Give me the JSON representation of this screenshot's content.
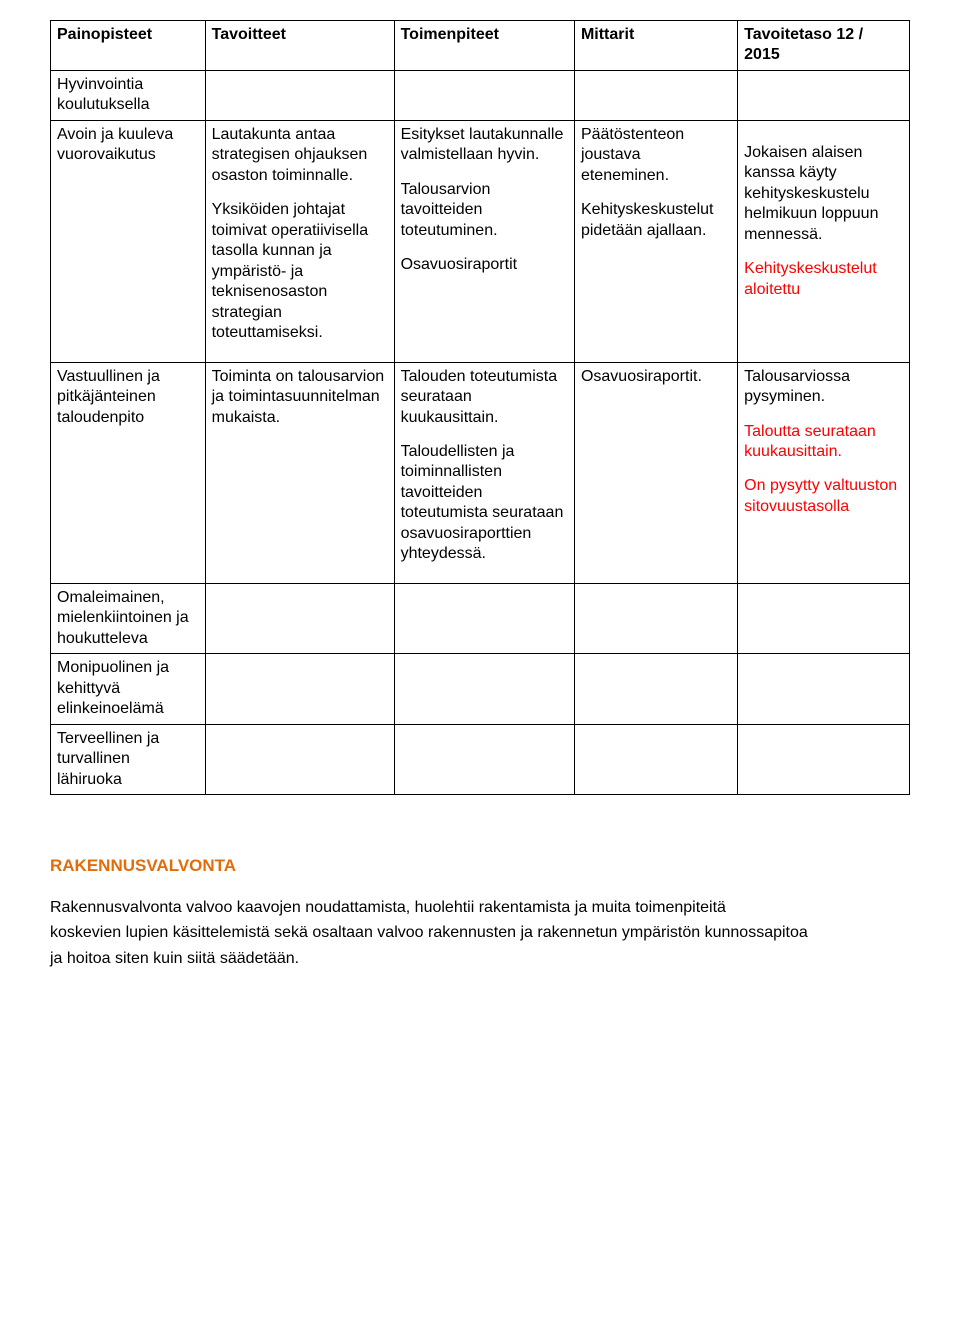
{
  "table": {
    "headers": [
      "Painopisteet",
      "Tavoitteet",
      "Toimenpiteet",
      "Mittarit",
      "Tavoitetaso 12 / 2015"
    ],
    "rows": [
      {
        "c0": "Hyvinvointia koulutuksella"
      },
      {
        "c0": "Avoin ja kuuleva vuorovaikutus",
        "c1a": "Lautakunta antaa strategisen ohjauksen osaston toiminnalle.",
        "c1b": "Yksiköiden johtajat toimivat operatiivisella tasolla kunnan ja ympäristö- ja teknisenosaston strategian toteuttamiseksi.",
        "c2a": "Esitykset lautakunnalle valmistellaan hyvin.",
        "c2b": "Talousarvion tavoitteiden toteutuminen.",
        "c2c": "Osavuosiraportit",
        "c3a": "Päätöstenteon joustava eteneminen.",
        "c3b": "Kehityskeskustelut pidetään ajallaan.",
        "c4a": "Jokaisen alaisen kanssa käyty kehityskeskustelu helmikuun loppuun mennessä.",
        "c4b": "Kehityskeskustelut aloitettu"
      },
      {
        "c0": "Vastuullinen ja pitkäjänteinen taloudenpito",
        "c1a": "Toiminta on talousarvion ja toimintasuunnitelman mukaista.",
        "c2a": "Talouden toteutumista seurataan kuukausittain.",
        "c2b": "Taloudellisten ja toiminnallisten tavoitteiden toteutumista seurataan osavuosiraporttien  yhteydessä.",
        "c3a": "Osavuosiraportit.",
        "c4a": "Talousarviossa pysyminen.",
        "c4b": "Taloutta seurataan kuukausittain.",
        "c4c": "On pysytty valtuuston sitovuustasolla"
      },
      {
        "c0": "Omaleimainen, mielenkiintoinen ja houkutteleva"
      },
      {
        "c0": "Monipuolinen ja kehittyvä elinkeinoelämä"
      },
      {
        "c0": "Terveellinen ja turvallinen lähiruoka"
      }
    ]
  },
  "section": {
    "heading": "RAKENNUSVALVONTA",
    "p1": "Rakennusvalvonta valvoo kaavojen noudattamista, huolehtii rakentamista ja muita toimenpiteitä",
    "p2": "koskevien lupien käsittelemistä sekä osaltaan valvoo rakennusten ja rakennetun ympäristön kunnossapitoa",
    "p3": "ja hoitoa siten kuin siitä säädetään."
  }
}
